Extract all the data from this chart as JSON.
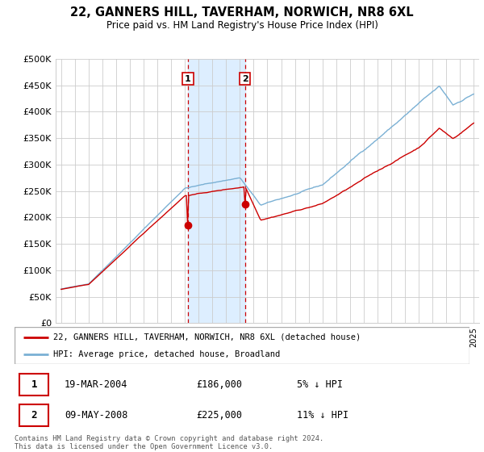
{
  "title": "22, GANNERS HILL, TAVERHAM, NORWICH, NR8 6XL",
  "subtitle": "Price paid vs. HM Land Registry's House Price Index (HPI)",
  "legend_line1": "22, GANNERS HILL, TAVERHAM, NORWICH, NR8 6XL (detached house)",
  "legend_line2": "HPI: Average price, detached house, Broadland",
  "sale1_date": "19-MAR-2004",
  "sale1_price": "£186,000",
  "sale1_note": "5% ↓ HPI",
  "sale2_date": "09-MAY-2008",
  "sale2_price": "£225,000",
  "sale2_note": "11% ↓ HPI",
  "footer": "Contains HM Land Registry data © Crown copyright and database right 2024.\nThis data is licensed under the Open Government Licence v3.0.",
  "line_color_property": "#cc0000",
  "line_color_hpi": "#7ab0d4",
  "shade_color": "#ddeeff",
  "vline_color": "#cc0000",
  "ylim": [
    0,
    500000
  ],
  "yticks": [
    0,
    50000,
    100000,
    150000,
    200000,
    250000,
    300000,
    350000,
    400000,
    450000,
    500000
  ],
  "sale1_year": 2004.22,
  "sale2_year": 2008.37,
  "sale1_price_val": 186000,
  "sale2_price_val": 225000,
  "xstart": 1995,
  "xend": 2025
}
